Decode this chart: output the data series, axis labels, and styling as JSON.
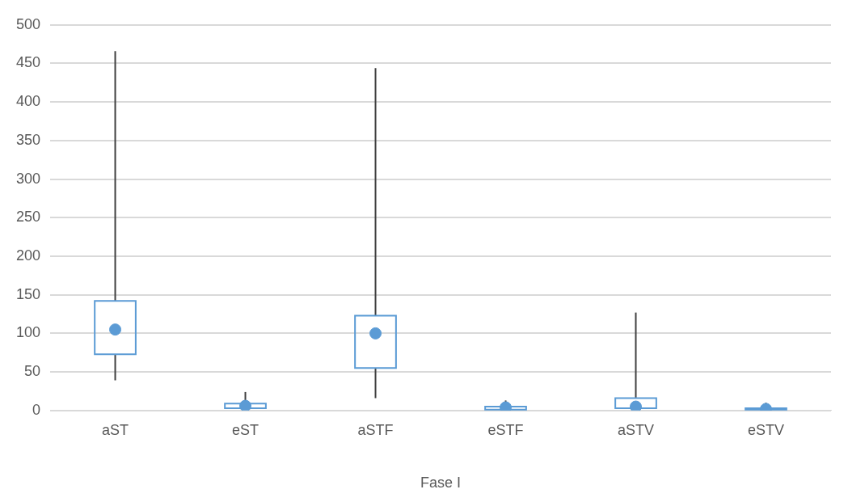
{
  "chart_data": {
    "type": "box",
    "xlabel": "Fase I",
    "categories": [
      "aST",
      "eST",
      "aSTF",
      "eSTF",
      "aSTV",
      "eSTV"
    ],
    "boxes": [
      {
        "low": 39,
        "q1": 73,
        "mean": 105,
        "q3": 142,
        "high": 466
      },
      {
        "low": 3,
        "q1": 3,
        "mean": 6,
        "q3": 9,
        "high": 24
      },
      {
        "low": 16,
        "q1": 55,
        "mean": 100,
        "q3": 123,
        "high": 444
      },
      {
        "low": 1,
        "q1": 1,
        "mean": 4,
        "q3": 5,
        "high": 13
      },
      {
        "low": 3,
        "q1": 3,
        "mean": 5,
        "q3": 16,
        "high": 127
      },
      {
        "low": 1,
        "q1": 1,
        "mean": 2,
        "q3": 3,
        "high": 10
      }
    ],
    "color": "#5b9bd5",
    "ylim": [
      0,
      500
    ],
    "yticks": [
      0,
      50,
      100,
      150,
      200,
      250,
      300,
      350,
      400,
      450,
      500
    ],
    "grid": "y",
    "legend": false,
    "marker": "circle"
  }
}
